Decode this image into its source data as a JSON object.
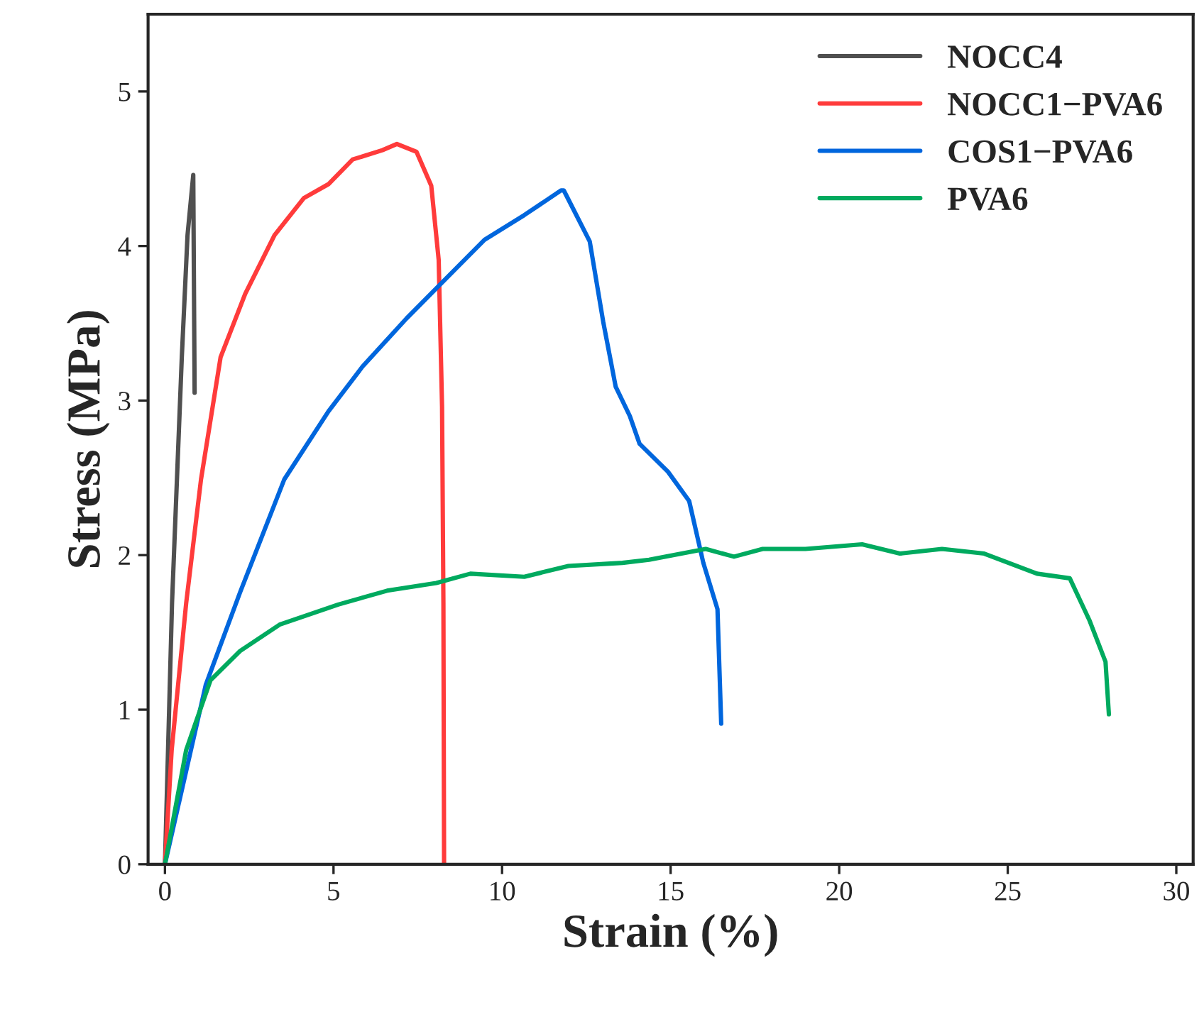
{
  "chart_data": {
    "type": "line",
    "xlabel": "Strain (%)",
    "ylabel": "Stress (MPa)",
    "xlim": [
      -0.5,
      30.5
    ],
    "ylim": [
      0,
      5.5
    ],
    "xticks": [
      0,
      5,
      10,
      15,
      20,
      25,
      30
    ],
    "yticks": [
      0,
      1,
      2,
      3,
      4,
      5
    ],
    "legend": "top right",
    "grid": false,
    "line_style": "solid",
    "series": [
      {
        "name": "NOCC4",
        "color": "#505050",
        "x": [
          0,
          0.21,
          0.5,
          0.67,
          0.84,
          0.88
        ],
        "values": [
          0,
          1.69,
          3.28,
          4.07,
          4.46,
          3.05
        ]
      },
      {
        "name": "NOCC1−PVA6",
        "color": "#ff3b3b",
        "x": [
          0,
          0.2,
          0.63,
          1.07,
          1.65,
          2.38,
          3.25,
          4.12,
          4.85,
          5.57,
          6.45,
          6.88,
          7.46,
          7.9,
          8.12,
          8.22,
          8.26,
          8.28
        ],
        "values": [
          0,
          0.74,
          1.69,
          2.49,
          3.28,
          3.69,
          4.07,
          4.31,
          4.4,
          4.56,
          4.62,
          4.66,
          4.61,
          4.39,
          3.91,
          2.96,
          1.69,
          0
        ]
      },
      {
        "name": "COS1−PVA6",
        "color": "#0066dd",
        "x": [
          0,
          1.21,
          2.23,
          3.54,
          4.85,
          5.86,
          7.16,
          8.34,
          9.48,
          10.66,
          11.75,
          11.83,
          12.6,
          13.0,
          13.37,
          13.79,
          14.08,
          14.92,
          15.55,
          15.97,
          16.39,
          16.5
        ],
        "values": [
          0,
          1.16,
          1.76,
          2.49,
          2.93,
          3.22,
          3.53,
          3.79,
          4.04,
          4.2,
          4.36,
          4.36,
          4.03,
          3.51,
          3.09,
          2.9,
          2.72,
          2.54,
          2.35,
          1.95,
          1.65,
          0.91
        ]
      },
      {
        "name": "PVA6",
        "color": "#00aa5f",
        "x": [
          0,
          0.63,
          1.35,
          2.23,
          3.4,
          5.14,
          6.59,
          8.05,
          9.06,
          10.66,
          11.97,
          13.57,
          14.36,
          16.04,
          16.88,
          17.73,
          19.0,
          20.68,
          21.8,
          23.05,
          24.3,
          25.87,
          26.84,
          27.42,
          27.9,
          28.0
        ],
        "values": [
          0,
          0.74,
          1.19,
          1.38,
          1.55,
          1.68,
          1.77,
          1.82,
          1.88,
          1.86,
          1.93,
          1.95,
          1.97,
          2.04,
          1.99,
          2.04,
          2.04,
          2.07,
          2.01,
          2.04,
          2.01,
          1.88,
          1.85,
          1.58,
          1.31,
          0.97
        ]
      }
    ]
  }
}
